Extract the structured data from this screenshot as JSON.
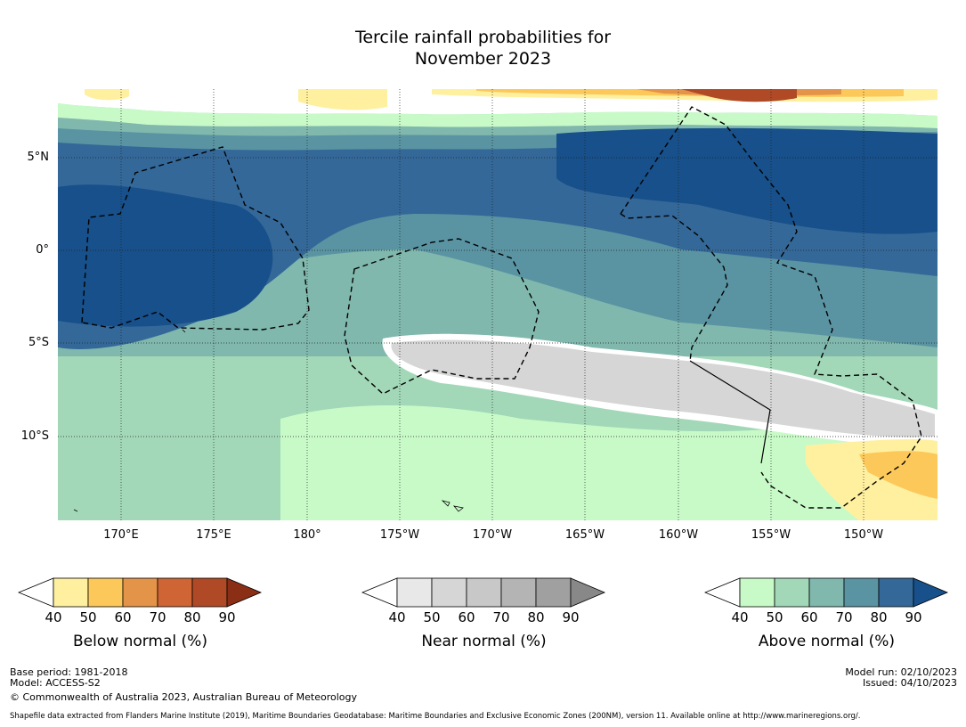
{
  "title_line1": "Tercile rainfall probabilities for",
  "title_line2": "November 2023",
  "lat_labels": [
    "5°N",
    "0°",
    "5°S",
    "10°S"
  ],
  "lon_labels": [
    "170°E",
    "175°E",
    "180°",
    "175°W",
    "170°W",
    "165°W",
    "160°W",
    "155°W",
    "150°W"
  ],
  "colorbars": [
    {
      "label": "Below normal (%)",
      "ticks": [
        "40",
        "50",
        "60",
        "70",
        "80",
        "90"
      ],
      "colors": [
        "#fff0a0",
        "#fdc85a",
        "#e49448",
        "#cf6434",
        "#b04a26",
        "#8a2e16"
      ]
    },
    {
      "label": "Near normal (%)",
      "ticks": [
        "40",
        "50",
        "60",
        "70",
        "80",
        "90"
      ],
      "colors": [
        "#e8e8e8",
        "#d6d6d6",
        "#c8c8c8",
        "#b4b4b4",
        "#a0a0a0",
        "#888888"
      ]
    },
    {
      "label": "Above normal (%)",
      "ticks": [
        "40",
        "50",
        "60",
        "70",
        "80",
        "90"
      ],
      "colors": [
        "#c8fac8",
        "#a2d8b8",
        "#80b8ad",
        "#5a94a2",
        "#346898",
        "#17508a"
      ]
    }
  ],
  "footer": {
    "base_period": "Base period: 1981-2018",
    "model": "Model: ACCESS-S2",
    "copyright": "© Commonwealth of Australia 2023, Australian Bureau of Meteorology",
    "model_run": "Model run: 02/10/2023",
    "issued": "Issued: 04/10/2023",
    "shapefile": "Shapefile data extracted from Flanders Marine Institute (2019), Maritime Boundaries Geodatabase: Maritime Boundaries and Exclusive Economic Zones (200NM), version 11. Available online at http://www.marineregions.org/."
  }
}
